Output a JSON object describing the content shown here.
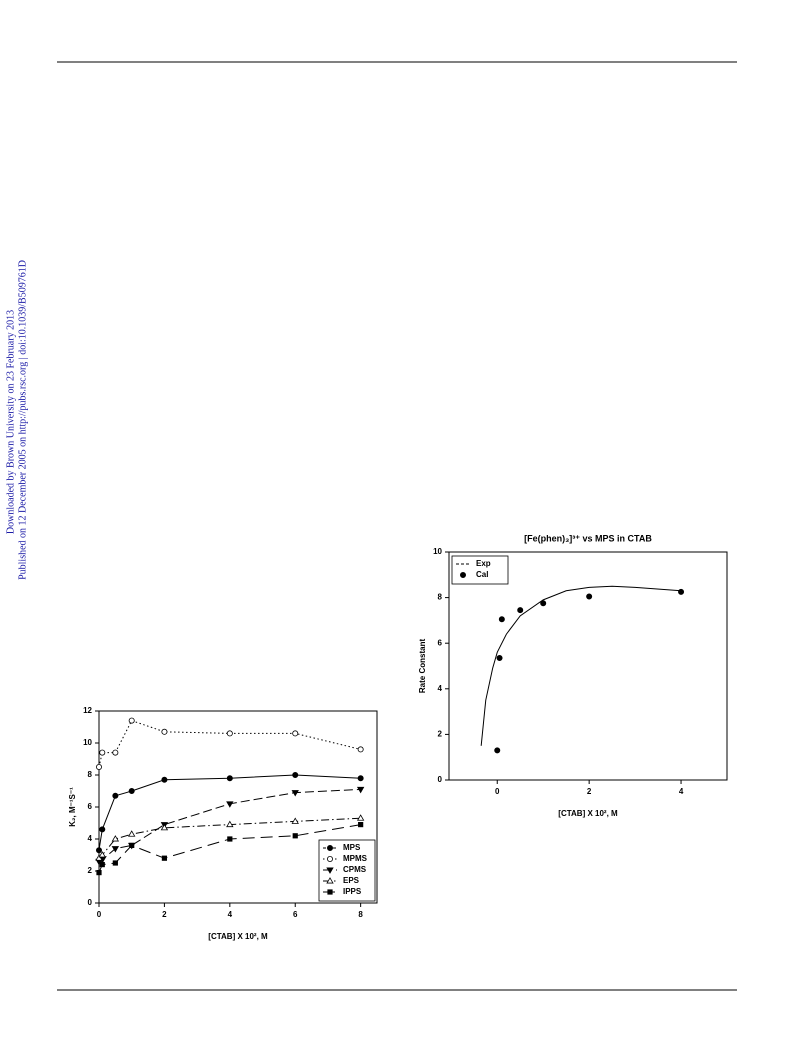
{
  "side_notes": [
    "Downloaded by Brown University on 23 February 2013",
    "Published on 12 December 2005 on http://pubs.rsc.org | doi:10.1039/B509761D"
  ],
  "chart_data": [
    {
      "type": "line",
      "xlabel": "[CTAB] X 10², M",
      "ylabel": "K₂, M⁻¹S⁻¹",
      "xlim": [
        0,
        8.5
      ],
      "ylim": [
        0,
        12
      ],
      "xticks": [
        0,
        2,
        4,
        6,
        8
      ],
      "yticks": [
        0,
        2,
        4,
        6,
        8,
        10,
        12
      ],
      "legend": "lower right",
      "series": [
        {
          "name": "MPS",
          "color": "#000000",
          "dash": "solid",
          "marker": "circle",
          "x": [
            0,
            0.1,
            0.5,
            1,
            2,
            4,
            6,
            8
          ],
          "values": [
            3.3,
            4.6,
            6.7,
            7.0,
            7.7,
            7.8,
            8.0,
            7.8
          ]
        },
        {
          "name": "MPMS",
          "color": "#000000",
          "dash": "dotted",
          "marker": "circle-open",
          "x": [
            0,
            0.1,
            0.5,
            1,
            2,
            4,
            6,
            8
          ],
          "values": [
            8.5,
            9.4,
            9.4,
            11.4,
            10.7,
            10.6,
            10.6,
            9.6
          ]
        },
        {
          "name": "CPMS",
          "color": "#000000",
          "dash": "dashed",
          "marker": "triangle-down",
          "x": [
            0,
            0.1,
            0.5,
            1,
            2,
            4,
            6,
            8
          ],
          "values": [
            2.6,
            2.7,
            3.4,
            3.6,
            4.9,
            6.2,
            6.9,
            7.1
          ]
        },
        {
          "name": "EPS",
          "color": "#000000",
          "dash": "dashdot",
          "marker": "triangle-up-open",
          "x": [
            0,
            0.1,
            0.5,
            1,
            2,
            4,
            6,
            8
          ],
          "values": [
            2.8,
            3.0,
            4.0,
            4.3,
            4.7,
            4.9,
            5.1,
            5.3
          ]
        },
        {
          "name": "IPPS",
          "color": "#000000",
          "dash": "longdash",
          "marker": "square",
          "x": [
            0,
            0.1,
            0.5,
            1,
            2,
            4,
            6,
            8
          ],
          "values": [
            1.9,
            2.4,
            2.5,
            3.6,
            2.8,
            4.0,
            4.2,
            4.9
          ]
        }
      ]
    },
    {
      "type": "line",
      "title": "[Fe(phen)₃]³⁺ vs MPS in CTAB",
      "xlabel": "[CTAB] X 10², M",
      "ylabel": "Rate Constant",
      "xlim": [
        -1.05,
        5
      ],
      "ylim": [
        0,
        10
      ],
      "xticks": [
        0,
        2,
        4
      ],
      "yticks": [
        0,
        2,
        4,
        6,
        8,
        10
      ],
      "legend": "upper left",
      "series": [
        {
          "name": "Exp",
          "color": "#000000",
          "dash": "solid",
          "marker": "none",
          "x": [
            -0.35,
            -0.25,
            -0.1,
            0,
            0.2,
            0.5,
            1,
            1.5,
            2,
            2.5,
            3,
            4
          ],
          "values": [
            1.5,
            3.5,
            4.9,
            5.6,
            6.4,
            7.2,
            7.9,
            8.3,
            8.45,
            8.5,
            8.45,
            8.3
          ]
        },
        {
          "name": "Cal",
          "color": "#000000",
          "dash": "none",
          "marker": "circle",
          "x": [
            0,
            0.05,
            0.1,
            0.5,
            1,
            2,
            4
          ],
          "values": [
            1.3,
            5.35,
            7.05,
            7.45,
            7.75,
            8.05,
            8.25
          ]
        }
      ]
    }
  ]
}
